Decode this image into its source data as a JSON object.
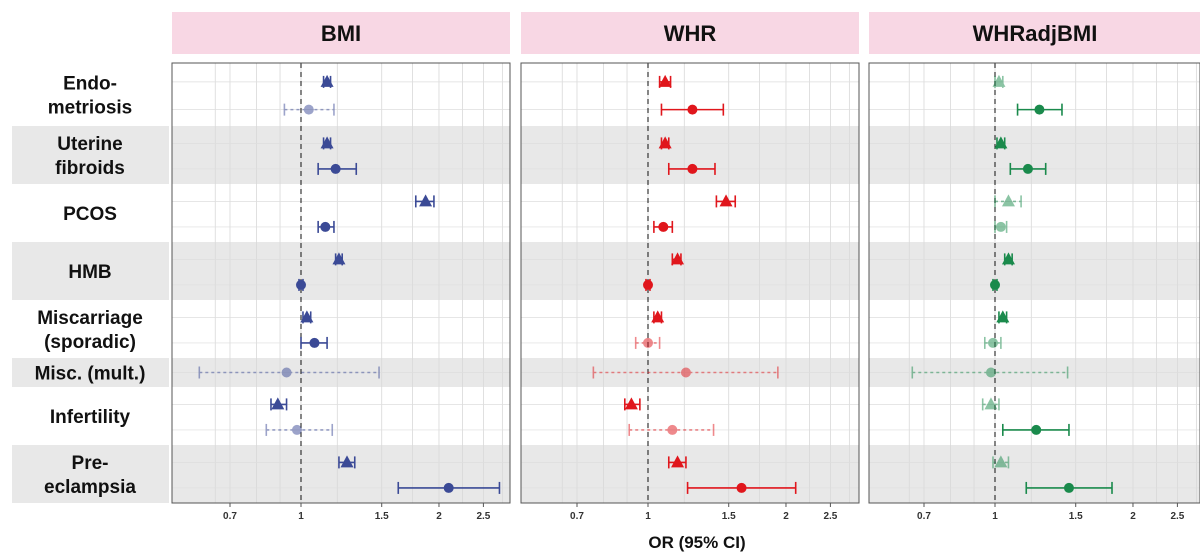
{
  "chart_data": {
    "type": "forest",
    "xlabel": "OR (95% CI)",
    "x_scale": "log",
    "xlim": [
      0.6,
      2.9
    ],
    "tick_labels": [
      "0.7",
      "1",
      "1.5",
      "2",
      "2.5"
    ],
    "reference_line": 1,
    "colors": {
      "BMI": "#3b4a96",
      "WHR": "#e0161c",
      "WHRadjBMI": "#1a8a4c",
      "header_bg": "#f8d7e4",
      "band_bg": "#e8e8e8"
    },
    "marker_legend": {
      "triangle": "upper estimate (per outcome)",
      "circle": "lower estimate (per outcome)"
    },
    "outcomes": [
      {
        "label": "Endo- metriosis",
        "lines": [
          "Endo-",
          "metriosis"
        ],
        "shaded": false
      },
      {
        "label": "Uterine fibroids",
        "lines": [
          "Uterine",
          "fibroids"
        ],
        "shaded": true
      },
      {
        "label": "PCOS",
        "lines": [
          "PCOS"
        ],
        "shaded": false
      },
      {
        "label": "HMB",
        "lines": [
          "HMB"
        ],
        "shaded": true
      },
      {
        "label": "Miscarriage (sporadic)",
        "lines": [
          "Miscarriage",
          "(sporadic)"
        ],
        "shaded": false
      },
      {
        "label": "Misc. (mult.)",
        "lines": [
          "Misc. (mult.)"
        ],
        "shaded": true
      },
      {
        "label": "Infertility",
        "lines": [
          "Infertility"
        ],
        "shaded": false
      },
      {
        "label": "Pre- eclampsia",
        "lines": [
          "Pre-",
          "eclampsia"
        ],
        "shaded": true
      }
    ],
    "panels": [
      {
        "name": "BMI",
        "points": [
          {
            "outcome": 0,
            "marker": "triangle",
            "or": 1.14,
            "lo": 1.12,
            "hi": 1.16,
            "faded": false,
            "dashed": false
          },
          {
            "outcome": 0,
            "marker": "circle",
            "or": 1.04,
            "lo": 0.92,
            "hi": 1.18,
            "faded": true,
            "dashed": true
          },
          {
            "outcome": 1,
            "marker": "triangle",
            "or": 1.14,
            "lo": 1.12,
            "hi": 1.16,
            "faded": false,
            "dashed": false
          },
          {
            "outcome": 1,
            "marker": "circle",
            "or": 1.19,
            "lo": 1.09,
            "hi": 1.32,
            "faded": false,
            "dashed": false
          },
          {
            "outcome": 2,
            "marker": "triangle",
            "or": 1.87,
            "lo": 1.78,
            "hi": 1.95,
            "faded": false,
            "dashed": false
          },
          {
            "outcome": 2,
            "marker": "circle",
            "or": 1.13,
            "lo": 1.09,
            "hi": 1.18,
            "faded": false,
            "dashed": false
          },
          {
            "outcome": 3,
            "marker": "triangle",
            "or": 1.21,
            "lo": 1.19,
            "hi": 1.23,
            "faded": false,
            "dashed": false
          },
          {
            "outcome": 3,
            "marker": "circle",
            "or": 1.0,
            "lo": 0.99,
            "hi": 1.01,
            "faded": false,
            "dashed": false
          },
          {
            "outcome": 4,
            "marker": "triangle",
            "or": 1.03,
            "lo": 1.01,
            "hi": 1.05,
            "faded": false,
            "dashed": false
          },
          {
            "outcome": 4,
            "marker": "circle",
            "or": 1.07,
            "lo": 1.0,
            "hi": 1.14,
            "faded": false,
            "dashed": false
          },
          {
            "outcome": 5,
            "marker": "circle",
            "or": 0.93,
            "lo": 0.6,
            "hi": 1.48,
            "faded": true,
            "dashed": true
          },
          {
            "outcome": 6,
            "marker": "triangle",
            "or": 0.89,
            "lo": 0.86,
            "hi": 0.93,
            "faded": false,
            "dashed": false
          },
          {
            "outcome": 6,
            "marker": "circle",
            "or": 0.98,
            "lo": 0.84,
            "hi": 1.17,
            "faded": true,
            "dashed": true
          },
          {
            "outcome": 7,
            "marker": "triangle",
            "or": 1.26,
            "lo": 1.21,
            "hi": 1.31,
            "faded": false,
            "dashed": false
          },
          {
            "outcome": 7,
            "marker": "circle",
            "or": 2.1,
            "lo": 1.63,
            "hi": 2.71,
            "faded": false,
            "dashed": false
          }
        ]
      },
      {
        "name": "WHR",
        "points": [
          {
            "outcome": 0,
            "marker": "triangle",
            "or": 1.09,
            "lo": 1.06,
            "hi": 1.12,
            "faded": false,
            "dashed": false
          },
          {
            "outcome": 0,
            "marker": "circle",
            "or": 1.25,
            "lo": 1.07,
            "hi": 1.46,
            "faded": false,
            "dashed": false
          },
          {
            "outcome": 1,
            "marker": "triangle",
            "or": 1.09,
            "lo": 1.07,
            "hi": 1.11,
            "faded": false,
            "dashed": false
          },
          {
            "outcome": 1,
            "marker": "circle",
            "or": 1.25,
            "lo": 1.11,
            "hi": 1.4,
            "faded": false,
            "dashed": false
          },
          {
            "outcome": 2,
            "marker": "triangle",
            "or": 1.48,
            "lo": 1.41,
            "hi": 1.55,
            "faded": false,
            "dashed": false
          },
          {
            "outcome": 2,
            "marker": "circle",
            "or": 1.08,
            "lo": 1.03,
            "hi": 1.13,
            "faded": false,
            "dashed": false
          },
          {
            "outcome": 3,
            "marker": "triangle",
            "or": 1.16,
            "lo": 1.13,
            "hi": 1.18,
            "faded": false,
            "dashed": false
          },
          {
            "outcome": 3,
            "marker": "circle",
            "or": 1.0,
            "lo": 0.99,
            "hi": 1.01,
            "faded": false,
            "dashed": false
          },
          {
            "outcome": 4,
            "marker": "triangle",
            "or": 1.05,
            "lo": 1.03,
            "hi": 1.07,
            "faded": false,
            "dashed": false
          },
          {
            "outcome": 4,
            "marker": "circle",
            "or": 1.0,
            "lo": 0.94,
            "hi": 1.06,
            "faded": true,
            "dashed": true
          },
          {
            "outcome": 5,
            "marker": "circle",
            "or": 1.21,
            "lo": 0.76,
            "hi": 1.92,
            "faded": true,
            "dashed": true
          },
          {
            "outcome": 6,
            "marker": "triangle",
            "or": 0.92,
            "lo": 0.89,
            "hi": 0.96,
            "faded": false,
            "dashed": false
          },
          {
            "outcome": 6,
            "marker": "circle",
            "or": 1.13,
            "lo": 0.91,
            "hi": 1.39,
            "faded": true,
            "dashed": true
          },
          {
            "outcome": 7,
            "marker": "triangle",
            "or": 1.16,
            "lo": 1.11,
            "hi": 1.21,
            "faded": false,
            "dashed": false
          },
          {
            "outcome": 7,
            "marker": "circle",
            "or": 1.6,
            "lo": 1.22,
            "hi": 2.1,
            "faded": false,
            "dashed": false
          }
        ]
      },
      {
        "name": "WHRadjBMI",
        "points": [
          {
            "outcome": 0,
            "marker": "triangle",
            "or": 1.02,
            "lo": 1.0,
            "hi": 1.04,
            "faded": true,
            "dashed": true
          },
          {
            "outcome": 0,
            "marker": "circle",
            "or": 1.25,
            "lo": 1.12,
            "hi": 1.4,
            "faded": false,
            "dashed": false
          },
          {
            "outcome": 1,
            "marker": "triangle",
            "or": 1.03,
            "lo": 1.01,
            "hi": 1.05,
            "faded": false,
            "dashed": false
          },
          {
            "outcome": 1,
            "marker": "circle",
            "or": 1.18,
            "lo": 1.08,
            "hi": 1.29,
            "faded": false,
            "dashed": false
          },
          {
            "outcome": 2,
            "marker": "triangle",
            "or": 1.07,
            "lo": 1.0,
            "hi": 1.14,
            "faded": true,
            "dashed": true
          },
          {
            "outcome": 2,
            "marker": "circle",
            "or": 1.03,
            "lo": 1.0,
            "hi": 1.06,
            "faded": true,
            "dashed": true
          },
          {
            "outcome": 3,
            "marker": "triangle",
            "or": 1.07,
            "lo": 1.05,
            "hi": 1.09,
            "faded": false,
            "dashed": false
          },
          {
            "outcome": 3,
            "marker": "circle",
            "or": 1.0,
            "lo": 0.99,
            "hi": 1.01,
            "faded": false,
            "dashed": false
          },
          {
            "outcome": 4,
            "marker": "triangle",
            "or": 1.04,
            "lo": 1.02,
            "hi": 1.06,
            "faded": false,
            "dashed": false
          },
          {
            "outcome": 4,
            "marker": "circle",
            "or": 0.99,
            "lo": 0.95,
            "hi": 1.03,
            "faded": true,
            "dashed": true
          },
          {
            "outcome": 5,
            "marker": "circle",
            "or": 0.98,
            "lo": 0.66,
            "hi": 1.44,
            "faded": true,
            "dashed": true
          },
          {
            "outcome": 6,
            "marker": "triangle",
            "or": 0.98,
            "lo": 0.94,
            "hi": 1.02,
            "faded": true,
            "dashed": true
          },
          {
            "outcome": 6,
            "marker": "circle",
            "or": 1.23,
            "lo": 1.04,
            "hi": 1.45,
            "faded": false,
            "dashed": false
          },
          {
            "outcome": 7,
            "marker": "triangle",
            "or": 1.03,
            "lo": 0.99,
            "hi": 1.07,
            "faded": true,
            "dashed": true
          },
          {
            "outcome": 7,
            "marker": "circle",
            "or": 1.45,
            "lo": 1.17,
            "hi": 1.8,
            "faded": false,
            "dashed": false
          }
        ]
      }
    ]
  }
}
